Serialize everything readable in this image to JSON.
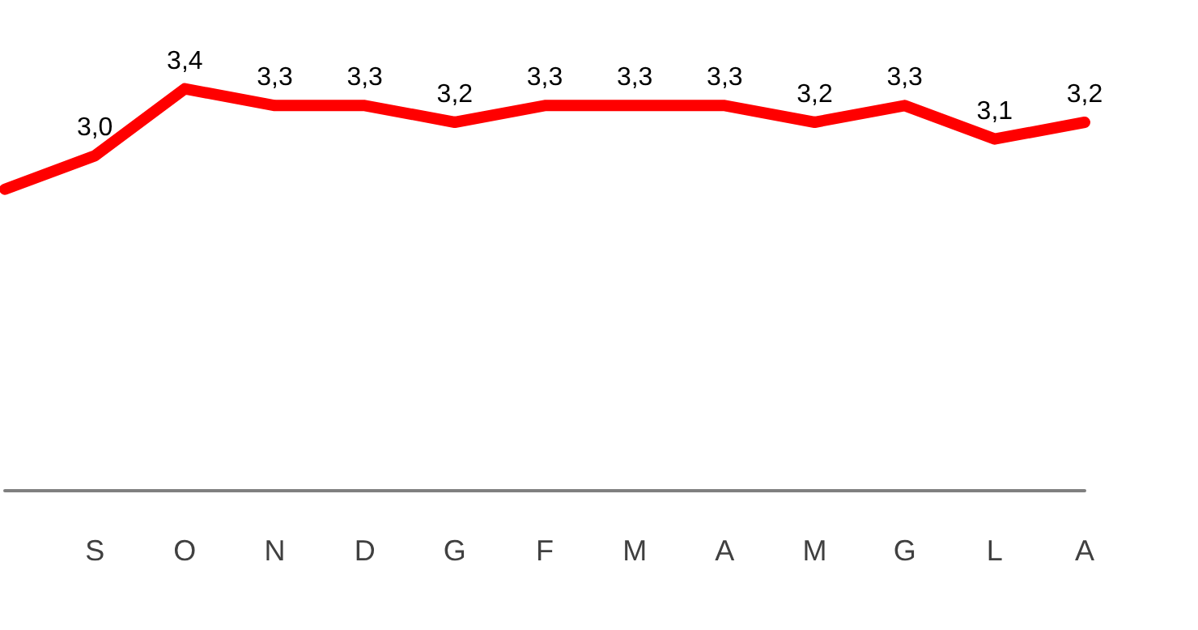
{
  "chart_data": {
    "type": "line",
    "categories": [
      null,
      "S",
      "O",
      "N",
      "D",
      "G",
      "F",
      "M",
      "A",
      "M",
      "G",
      "L",
      "A"
    ],
    "series": [
      {
        "color": "#ff0000",
        "values": [
          2.8,
          3.0,
          3.4,
          3.3,
          3.3,
          3.2,
          3.3,
          3.3,
          3.3,
          3.2,
          3.3,
          3.1,
          3.2
        ],
        "value_labels": [
          null,
          "3,0",
          "3,4",
          "3,3",
          "3,3",
          "3,2",
          "3,3",
          "3,3",
          "3,3",
          "3,2",
          "3,3",
          "3,1",
          "3,2"
        ]
      }
    ],
    "tick_labels": "x",
    "grid": false,
    "marker": "none",
    "line_style": "solid"
  }
}
